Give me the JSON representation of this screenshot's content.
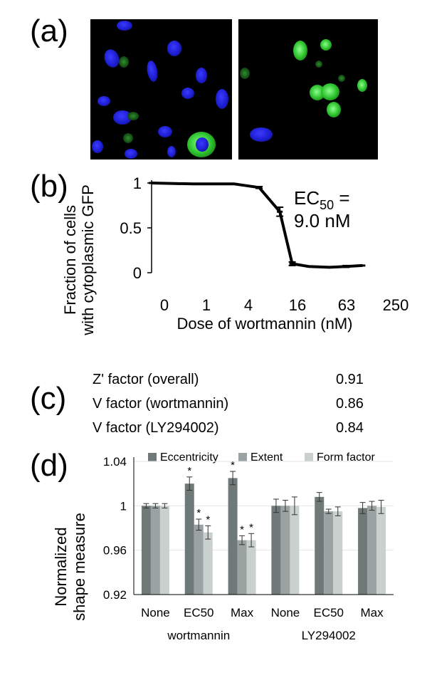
{
  "panels": {
    "a": "(a)",
    "b": "(b)",
    "c": "(c)",
    "d": "(d)"
  },
  "panel_c": {
    "rows": [
      {
        "label": "Z' factor (overall)",
        "value": "0.91"
      },
      {
        "label": "V factor (wortmannin)",
        "value": "0.86"
      },
      {
        "label": "V factor (LY294002)",
        "value": "0.84"
      }
    ]
  },
  "colors": {
    "line": "#000000",
    "eccentricity": "#6f7a78",
    "extent": "#9aa3a1",
    "form_factor": "#c9d0ce"
  },
  "chart_data": [
    {
      "type": "line",
      "panel": "b",
      "x": [
        "0",
        "1",
        "4",
        "16",
        "63",
        "250"
      ],
      "x_points": [
        0,
        1,
        2,
        2.5,
        3,
        3.5,
        4,
        4.5,
        5
      ],
      "series": [
        {
          "values": [
            1.0,
            0.99,
            0.99,
            0.95,
            0.68,
            0.1,
            0.07,
            0.06,
            0.07,
            0.08
          ],
          "x": [
            0,
            1,
            2,
            2.6,
            3.1,
            3.4,
            3.8,
            4.3,
            4.7,
            5.1
          ],
          "errors": [
            0,
            0,
            0,
            0.01,
            0.05,
            0.02,
            0,
            0,
            0.01,
            0
          ]
        }
      ],
      "xticks": [
        "0",
        "1",
        "4",
        "16",
        "63",
        "250"
      ],
      "yticks": [
        "0",
        "0.5",
        "1"
      ],
      "ylim": [
        0,
        1
      ],
      "xlabel": "Dose of wortmannin (nM)",
      "ylabel_line1": "Fraction of cells",
      "ylabel_line2": "with cytoplasmic GFP",
      "annotation_main": "EC",
      "annotation_sub": "50",
      "annotation_eq": " =",
      "annotation_line2": "9.0 nM"
    },
    {
      "type": "bar",
      "panel": "d",
      "categories": [
        "None",
        "EC50",
        "Max",
        "None",
        "EC50",
        "Max"
      ],
      "groups": [
        "wortmannin",
        "LY294002"
      ],
      "series": [
        {
          "name": "Eccentricity",
          "values": [
            1.0,
            1.02,
            1.025,
            1.0,
            1.008,
            0.998
          ],
          "errors": [
            0.002,
            0.006,
            0.006,
            0.006,
            0.004,
            0.005
          ],
          "star": [
            false,
            true,
            true,
            false,
            false,
            false
          ]
        },
        {
          "name": "Extent",
          "values": [
            1.0,
            0.983,
            0.969,
            1.0,
            0.995,
            1.0
          ],
          "errors": [
            0.002,
            0.005,
            0.004,
            0.005,
            0.002,
            0.004
          ],
          "star": [
            false,
            true,
            true,
            false,
            false,
            false
          ]
        },
        {
          "name": "Form factor",
          "values": [
            1.0,
            0.976,
            0.969,
            1.0,
            0.995,
            0.999
          ],
          "errors": [
            0.002,
            0.006,
            0.006,
            0.008,
            0.004,
            0.006
          ],
          "star": [
            false,
            true,
            true,
            false,
            false,
            false
          ]
        }
      ],
      "yticks": [
        "0.92",
        "0.96",
        "1",
        "1.04"
      ],
      "ylim": [
        0.92,
        1.04
      ],
      "ylabel_line1": "Normalized",
      "ylabel_line2": "shape measure",
      "star_symbol": "*"
    }
  ]
}
